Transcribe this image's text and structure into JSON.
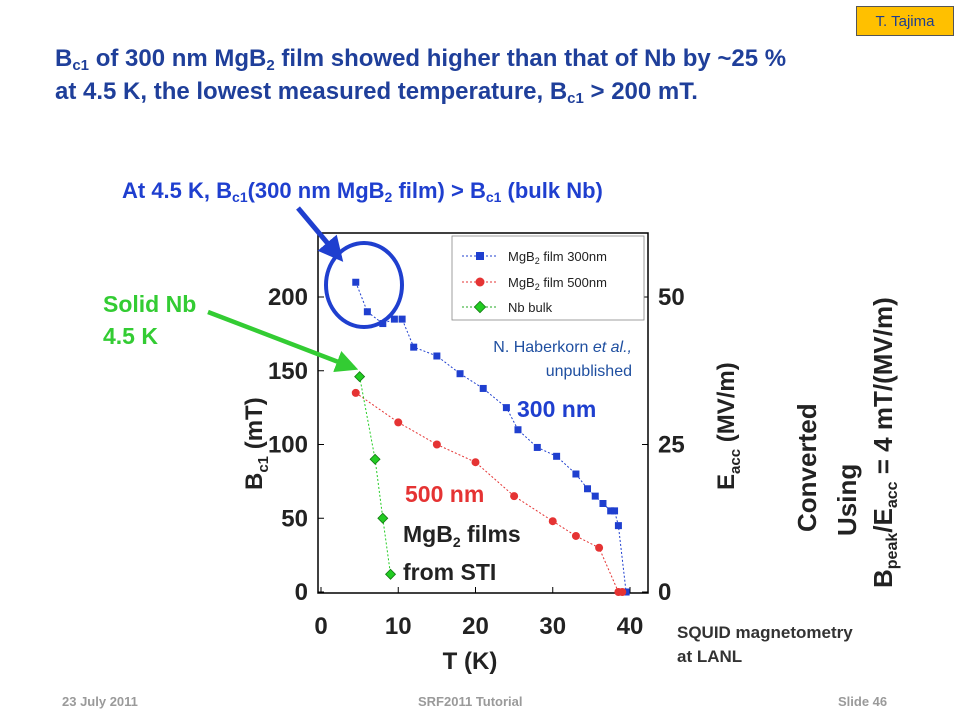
{
  "author_tag": "T. Tajima",
  "headline": {
    "l1_a": "B",
    "l1_a_sub": "c1",
    "l1_b": " of 300 nm MgB",
    "l1_b_sub": "2",
    "l1_c": " film showed higher than that of Nb by ~25 %",
    "l2_a": "at 4.5 K, the lowest measured temperature, B",
    "l2_a_sub": "c1",
    "l2_b": " > 200 mT."
  },
  "callout": {
    "a": "At 4.5 K, B",
    "a_sub": "c1",
    "b": "(300 nm MgB",
    "b_sub": "2",
    "c": " film) > B",
    "c_sub": "c1",
    "d": " (bulk Nb)"
  },
  "solid_nb": {
    "l1": "Solid Nb",
    "l2": "4.5 K"
  },
  "squid_note": {
    "l1": "SQUID magnetometry",
    "l2": "at LANL"
  },
  "converted": {
    "l1": "Converted",
    "l2": "Using",
    "l3_a": "B",
    "l3_a_sub": "peak",
    "l3_b": "/E",
    "l3_b_sub": "acc",
    "l3_c": " = 4 mT/(MV/m)"
  },
  "footer": {
    "date": "23 July 2011",
    "title": "SRF2011 Tutorial",
    "slide": "Slide 46"
  },
  "colors": {
    "navy": "#1f3f9a",
    "blue": "#1f3fcf",
    "green": "#33cc33",
    "red": "#e53333",
    "marker_green": "#22cc22"
  },
  "chart_data": {
    "type": "scatter",
    "x_axis": {
      "label": "T (K)",
      "min": 0,
      "max": 42,
      "ticks": [
        0,
        10,
        20,
        30,
        40
      ]
    },
    "y_axis_left": {
      "label_main": "B",
      "label_sub": "c1",
      "label_unit": " (mT)",
      "min": 0,
      "max": 240,
      "ticks": [
        0,
        50,
        100,
        150,
        200
      ]
    },
    "y_axis_right": {
      "label_main": "E",
      "label_sub": "acc",
      "label_unit": " (MV/m)",
      "ticks": [
        0,
        25,
        50
      ],
      "tick_positions_mT": [
        0,
        100,
        200
      ]
    },
    "legend": {
      "position": "top-right",
      "entries": [
        {
          "pre": "MgB",
          "sub": "2",
          "post": " film 300nm"
        },
        {
          "pre": "MgB",
          "sub": "2",
          "post": " film 500nm"
        },
        {
          "pre": "Nb bulk",
          "sub": "",
          "post": ""
        }
      ]
    },
    "series": [
      {
        "marker": "square",
        "color": "#1f3fcf",
        "points": [
          [
            4.5,
            210
          ],
          [
            6,
            190
          ],
          [
            8,
            182
          ],
          [
            9.5,
            185
          ],
          [
            10.5,
            185
          ],
          [
            12,
            166
          ],
          [
            15,
            160
          ],
          [
            18,
            148
          ],
          [
            21,
            138
          ],
          [
            24,
            125
          ],
          [
            25.5,
            110
          ],
          [
            28,
            98
          ],
          [
            30.5,
            92
          ],
          [
            33,
            80
          ],
          [
            34.5,
            70
          ],
          [
            35.5,
            65
          ],
          [
            36.5,
            60
          ],
          [
            37.5,
            55
          ],
          [
            38,
            55
          ],
          [
            38.5,
            45
          ],
          [
            39.5,
            0
          ]
        ]
      },
      {
        "marker": "circle",
        "color": "#e53333",
        "points": [
          [
            4.5,
            135
          ],
          [
            10,
            115
          ],
          [
            15,
            100
          ],
          [
            20,
            88
          ],
          [
            25,
            65
          ],
          [
            30,
            48
          ],
          [
            33,
            38
          ],
          [
            36,
            30
          ],
          [
            38.5,
            0
          ],
          [
            39,
            0
          ]
        ]
      },
      {
        "marker": "diamond",
        "color": "#22cc22",
        "points": [
          [
            5,
            146
          ],
          [
            7,
            90
          ],
          [
            8,
            50
          ],
          [
            9,
            12
          ]
        ]
      }
    ],
    "annotations": {
      "haberkorn_a": "N. Haberkorn ",
      "haberkorn_b": "et al.,",
      "haberkorn_c": "unpublished",
      "label_300": "300 nm",
      "label_500": "500 nm",
      "mgb_a": "MgB",
      "mgb_sub": "2",
      "mgb_b": " films",
      "mgb_c": "from STI"
    }
  }
}
